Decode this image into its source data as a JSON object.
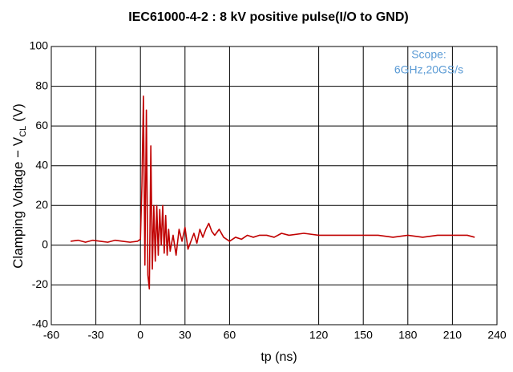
{
  "chart_data": {
    "type": "line",
    "title": "IEC61000-4-2 : 8 kV positive pulse(I/O to GND)",
    "x_label": "tp (ns)",
    "y_label": "Clamping Voltage − V",
    "y_label_sub": "CL",
    "y_label_unit": "(V)",
    "annotations": [
      "Scope:",
      "6GHz,20GS/s"
    ],
    "color": "#c00000",
    "annotation_color": "#5b9bd5",
    "grid": true,
    "xlim": [
      -60,
      240
    ],
    "xticks": [
      -60,
      -30,
      0,
      30,
      60,
      120,
      150,
      180,
      210,
      240
    ],
    "ylim": [
      -40,
      100
    ],
    "yticks": [
      -40,
      -20,
      0,
      20,
      40,
      60,
      80,
      100
    ],
    "x": [
      -47,
      -42,
      -37,
      -32,
      -27,
      -22,
      -17,
      -12,
      -7,
      -2,
      0,
      1,
      2,
      3,
      4,
      5,
      6,
      7,
      8,
      9,
      10,
      11,
      12,
      13,
      14,
      15,
      16,
      17,
      18,
      19,
      20,
      22,
      24,
      26,
      28,
      30,
      32,
      34,
      36,
      38,
      40,
      42,
      44,
      46,
      48,
      50,
      53,
      56,
      60,
      64,
      68,
      72,
      76,
      80,
      85,
      90,
      95,
      100,
      110,
      120,
      130,
      140,
      150,
      160,
      170,
      180,
      190,
      200,
      210,
      220,
      225
    ],
    "values": [
      2,
      2.5,
      1.5,
      2.5,
      2,
      1.5,
      2.5,
      2,
      1.5,
      2,
      3,
      30,
      75,
      -10,
      68,
      -15,
      -22,
      50,
      -12,
      20,
      -8,
      20,
      -5,
      18,
      0,
      20,
      -4,
      15,
      -5,
      8,
      -3,
      5,
      -5,
      8,
      2,
      9,
      -2,
      2,
      6,
      1,
      8,
      4,
      8,
      11,
      7,
      5,
      8,
      4,
      2,
      4,
      3,
      5,
      4,
      5,
      5,
      4,
      6,
      5,
      6,
      5,
      5,
      5,
      5,
      5,
      4,
      5,
      4,
      5,
      5,
      5,
      4
    ]
  }
}
